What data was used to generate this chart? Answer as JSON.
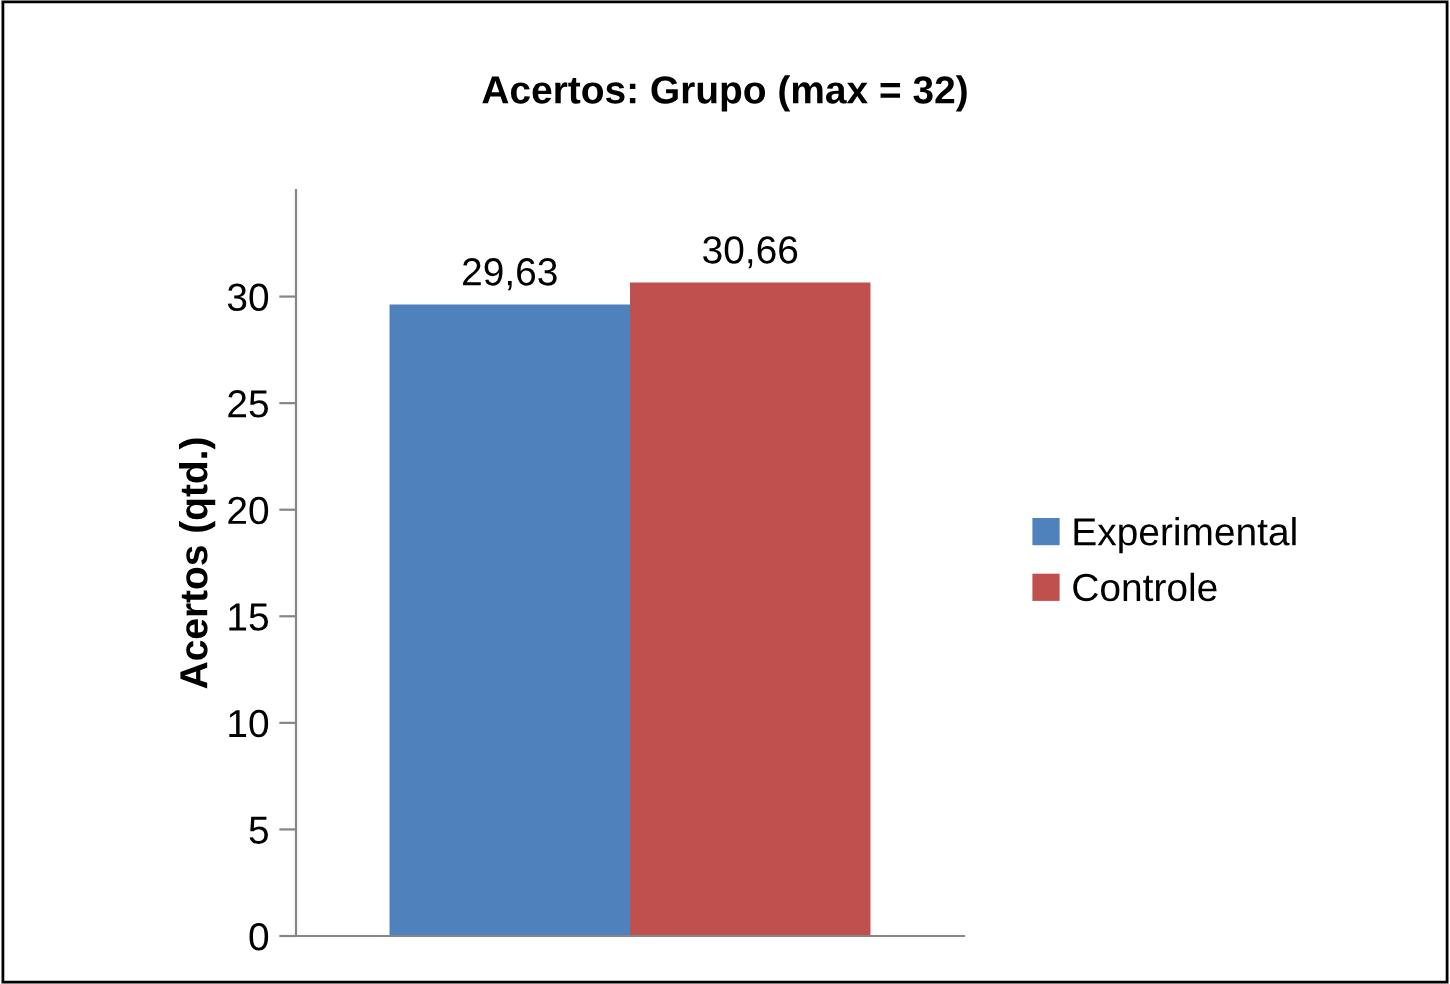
{
  "chart_data": {
    "type": "bar",
    "title": "Acertos: Grupo (max = 32)",
    "ylabel": "Acertos (qtd.)",
    "categories": [
      null
    ],
    "series": [
      {
        "name": "Experimental",
        "color": "#4f81bd",
        "values": [
          29.63
        ],
        "value_labels": [
          "29,63"
        ]
      },
      {
        "name": "Controle",
        "color": "#c0504d",
        "values": [
          30.66
        ],
        "value_labels": [
          "30,66"
        ]
      }
    ],
    "ylim": [
      0,
      35
    ],
    "yticks": [
      0,
      5,
      10,
      15,
      20,
      25,
      30
    ],
    "grid": false,
    "legend": "right"
  }
}
